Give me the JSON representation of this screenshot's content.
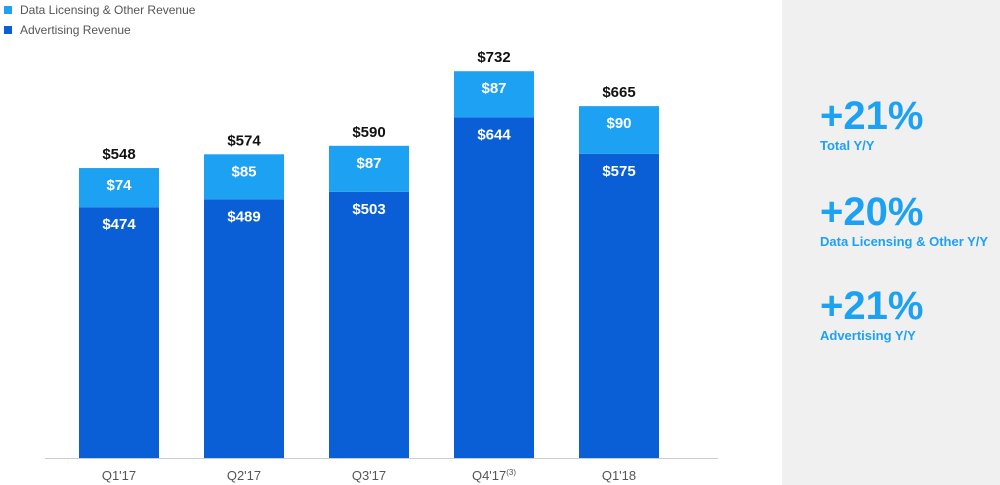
{
  "colors": {
    "data_licensing": "#1da1f2",
    "advertising": "#0a5fd6",
    "accent": "#1da1f2",
    "label_dark": "#111111",
    "axis": "#cccccc"
  },
  "legend": {
    "items": [
      {
        "label": "Data Licensing & Other Revenue",
        "color_key": "data_licensing"
      },
      {
        "label": "Advertising Revenue",
        "color_key": "advertising"
      }
    ]
  },
  "chart_data": {
    "type": "bar",
    "stacked": true,
    "categories": [
      "Q1'17",
      "Q2'17",
      "Q3'17",
      "Q4'17",
      "Q1'18"
    ],
    "category_footnotes": [
      "",
      "",
      "",
      "(3)",
      ""
    ],
    "series": [
      {
        "name": "Advertising Revenue",
        "values": [
          474,
          489,
          503,
          644,
          575
        ],
        "labels": [
          "$474",
          "$489",
          "$503",
          "$644",
          "$575"
        ]
      },
      {
        "name": "Data Licensing & Other Revenue",
        "values": [
          74,
          85,
          87,
          87,
          90
        ],
        "labels": [
          "$74",
          "$85",
          "$87",
          "$87",
          "$90"
        ]
      }
    ],
    "totals": [
      548,
      574,
      590,
      732,
      665
    ],
    "total_labels": [
      "$548",
      "$574",
      "$590",
      "$732",
      "$665"
    ],
    "ylim": [
      0,
      790
    ],
    "grid": false,
    "legend_position": "top-left"
  },
  "side_panel": {
    "stats": [
      {
        "value": "+21%",
        "label": "Total Y/Y"
      },
      {
        "value": "+20%",
        "label": "Data Licensing & Other Y/Y"
      },
      {
        "value": "+21%",
        "label": "Advertising Y/Y"
      }
    ]
  }
}
